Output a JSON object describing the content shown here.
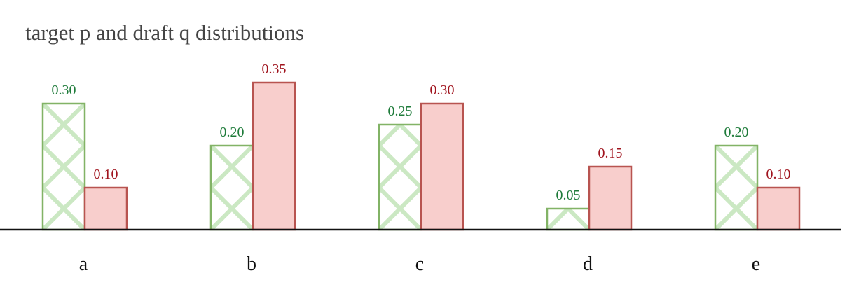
{
  "chart_data": {
    "type": "bar",
    "title": "target p and draft q distributions",
    "categories": [
      "a",
      "b",
      "c",
      "d",
      "e"
    ],
    "series": [
      {
        "color": "#82b366",
        "label_color": "#1e7b3a",
        "hatch": "cross",
        "values": [
          0.3,
          0.2,
          0.25,
          0.05,
          0.2
        ],
        "value_labels": [
          "0.30",
          "0.20",
          "0.25",
          "0.05",
          "0.20"
        ]
      },
      {
        "color": "#b85450",
        "fill": "#f8cecc",
        "label_color": "#a0141e",
        "values": [
          0.1,
          0.35,
          0.3,
          0.15,
          0.1
        ],
        "value_labels": [
          "0.10",
          "0.35",
          "0.30",
          "0.15",
          "0.10"
        ]
      }
    ],
    "ylim": [
      0,
      0.4
    ]
  }
}
